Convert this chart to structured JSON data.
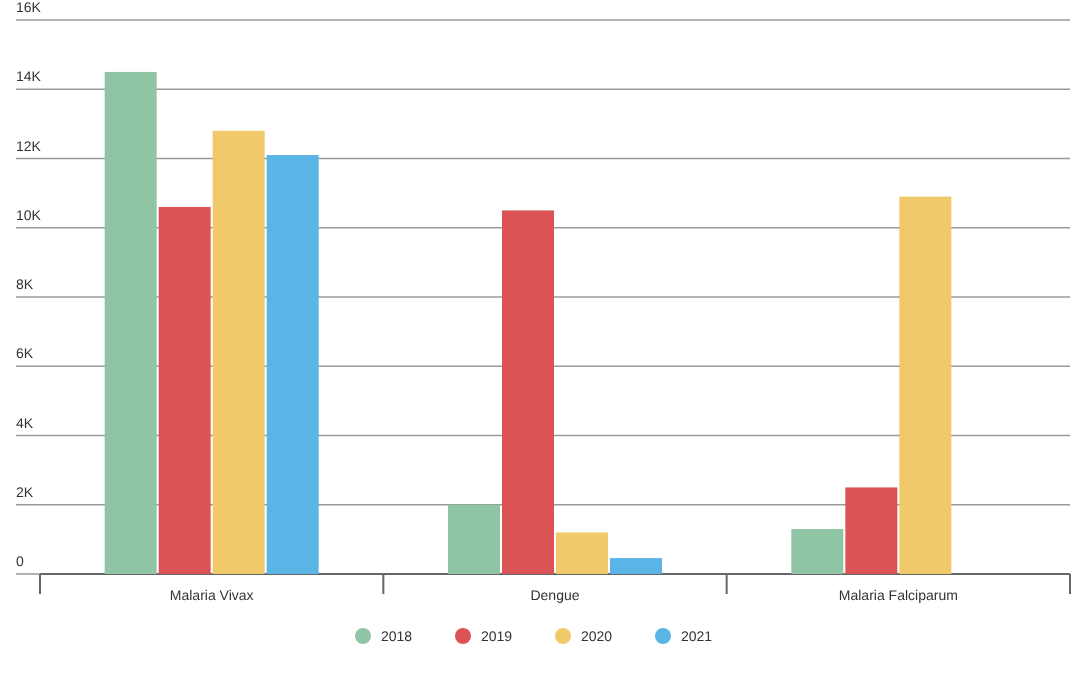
{
  "chart_data": {
    "type": "bar",
    "categories": [
      "Malaria Vivax",
      "Dengue",
      "Malaria Falciparum"
    ],
    "series": [
      {
        "name": "2018",
        "color": "#8fc4a5",
        "values": [
          14500,
          2000,
          1300
        ]
      },
      {
        "name": "2019",
        "color": "#dc5356",
        "values": [
          10600,
          10500,
          2500
        ]
      },
      {
        "name": "2020",
        "color": "#f0ca6a",
        "values": [
          12800,
          1200,
          10900
        ]
      },
      {
        "name": "2021",
        "color": "#5ab4e5",
        "values": [
          12100,
          460,
          null
        ]
      }
    ],
    "ylim": [
      0,
      16000
    ],
    "yticks": [
      0,
      {
        "value": 2000,
        "label": "2K"
      },
      {
        "value": 4000,
        "label": "4K"
      },
      {
        "value": 6000,
        "label": "6K"
      },
      {
        "value": 8000,
        "label": "8K"
      },
      {
        "value": 10000,
        "label": "10K"
      },
      {
        "value": 12000,
        "label": "12K"
      },
      {
        "value": 14000,
        "label": "14K"
      },
      {
        "value": 16000,
        "label": "16K"
      }
    ],
    "grid": "y",
    "legend": "bottom"
  }
}
